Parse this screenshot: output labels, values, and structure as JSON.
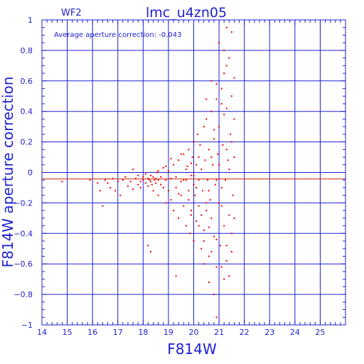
{
  "chart_data": {
    "type": "scatter",
    "title": "lmc_u4zn05",
    "chip": "WF2",
    "xlabel": "F814W",
    "ylabel": "F814W aperture correction",
    "annotation": "Average aperture correction:  -0.043",
    "xlim": [
      14,
      26
    ],
    "ylim": [
      -1,
      1
    ],
    "xticks": [
      14,
      15,
      16,
      17,
      18,
      19,
      20,
      21,
      22,
      23,
      24,
      25
    ],
    "yticks": [
      -1,
      -0.8,
      -0.6,
      -0.4,
      -0.2,
      0,
      0.2,
      0.4,
      0.6,
      0.8,
      1
    ],
    "xtick_labels": [
      "14",
      "15",
      "16",
      "17",
      "18",
      "19",
      "20",
      "21",
      "22",
      "23",
      "24",
      "25"
    ],
    "ytick_labels": [
      "−1",
      "−0.8",
      "−0.6",
      "−0.4",
      "−0.2",
      "0",
      "0.2",
      "0.4",
      "0.6",
      "0.8",
      "1"
    ],
    "average_line": -0.043,
    "grid": true,
    "colors": {
      "axes": "#2020d0",
      "points": "#ee0000",
      "average_line": "#cc2200",
      "background": "#ffffff"
    },
    "points": [
      [
        14.8,
        -0.06
      ],
      [
        15.9,
        -0.05
      ],
      [
        16.2,
        -0.07
      ],
      [
        16.3,
        -0.12
      ],
      [
        16.4,
        -0.22
      ],
      [
        16.5,
        -0.05
      ],
      [
        16.6,
        -0.07
      ],
      [
        16.7,
        -0.1
      ],
      [
        16.8,
        -0.04
      ],
      [
        16.9,
        -0.12
      ],
      [
        17.0,
        -0.06
      ],
      [
        17.1,
        -0.15
      ],
      [
        17.2,
        -0.05
      ],
      [
        17.3,
        -0.03
      ],
      [
        17.4,
        -0.09
      ],
      [
        17.5,
        -0.06
      ],
      [
        17.6,
        0.02
      ],
      [
        17.6,
        -0.11
      ],
      [
        17.7,
        -0.04
      ],
      [
        17.8,
        -0.08
      ],
      [
        17.8,
        -0.02
      ],
      [
        17.9,
        -0.06
      ],
      [
        17.9,
        -0.1
      ],
      [
        18.0,
        -0.03
      ],
      [
        18.0,
        -0.05
      ],
      [
        18.1,
        -0.07
      ],
      [
        18.1,
        -0.01
      ],
      [
        18.2,
        -0.04
      ],
      [
        18.2,
        -0.09
      ],
      [
        18.25,
        -0.05
      ],
      [
        18.3,
        -0.02
      ],
      [
        18.3,
        -0.06
      ],
      [
        18.35,
        -0.08
      ],
      [
        18.4,
        -0.03
      ],
      [
        18.4,
        -0.12
      ],
      [
        18.45,
        -0.05
      ],
      [
        18.5,
        -0.04
      ],
      [
        18.5,
        -0.07
      ],
      [
        18.55,
        0.0
      ],
      [
        18.6,
        -0.05
      ],
      [
        18.6,
        -0.15
      ],
      [
        18.7,
        -0.03
      ],
      [
        18.7,
        -0.08
      ],
      [
        18.8,
        0.03
      ],
      [
        18.8,
        -0.1
      ],
      [
        18.9,
        -0.05
      ],
      [
        18.9,
        -0.2
      ],
      [
        19.0,
        0.01
      ],
      [
        19.0,
        -0.12
      ],
      [
        19.1,
        -0.04
      ],
      [
        19.1,
        -0.18
      ],
      [
        19.2,
        0.05
      ],
      [
        19.2,
        -0.25
      ],
      [
        19.3,
        -0.03
      ],
      [
        19.3,
        -0.1
      ],
      [
        19.4,
        0.08
      ],
      [
        19.4,
        -0.3
      ],
      [
        19.5,
        -0.06
      ],
      [
        19.5,
        -0.15
      ],
      [
        19.6,
        0.12
      ],
      [
        19.6,
        -0.22
      ],
      [
        19.7,
        -0.05
      ],
      [
        19.7,
        -0.35
      ],
      [
        19.75,
        0.04
      ],
      [
        19.8,
        -0.12
      ],
      [
        19.8,
        0.15
      ],
      [
        19.85,
        -0.4
      ],
      [
        19.9,
        -0.02
      ],
      [
        19.9,
        -0.28
      ],
      [
        19.95,
        0.1
      ],
      [
        20.0,
        -0.08
      ],
      [
        20.0,
        0.2
      ],
      [
        20.0,
        -0.45
      ],
      [
        20.05,
        -0.15
      ],
      [
        20.1,
        0.05
      ],
      [
        20.1,
        -0.32
      ],
      [
        20.15,
        0.25
      ],
      [
        20.2,
        -0.05
      ],
      [
        20.2,
        -0.22
      ],
      [
        20.25,
        0.18
      ],
      [
        20.3,
        -0.5
      ],
      [
        20.3,
        0.02
      ],
      [
        20.35,
        -0.12
      ],
      [
        20.4,
        0.3
      ],
      [
        20.4,
        -0.38
      ],
      [
        20.45,
        0.08
      ],
      [
        20.5,
        -0.25
      ],
      [
        20.5,
        0.35
      ],
      [
        20.55,
        -0.05
      ],
      [
        20.6,
        0.15
      ],
      [
        20.6,
        -0.55
      ],
      [
        20.65,
        -0.18
      ],
      [
        20.7,
        0.4
      ],
      [
        20.7,
        -0.3
      ],
      [
        20.75,
        0.05
      ],
      [
        20.8,
        -0.42
      ],
      [
        20.8,
        0.22
      ],
      [
        20.85,
        -0.08
      ],
      [
        20.9,
        0.48
      ],
      [
        20.9,
        -0.62
      ],
      [
        20.95,
        0.12
      ],
      [
        21.0,
        -0.2
      ],
      [
        21.0,
        0.3
      ],
      [
        21.05,
        -0.48
      ],
      [
        21.1,
        0.55
      ],
      [
        21.1,
        -0.1
      ],
      [
        21.15,
        0.18
      ],
      [
        21.2,
        -0.35
      ],
      [
        21.2,
        0.65
      ],
      [
        21.25,
        -0.05
      ],
      [
        21.3,
        0.42
      ],
      [
        21.3,
        -0.58
      ],
      [
        21.35,
        0.08
      ],
      [
        21.4,
        0.75
      ],
      [
        21.4,
        -0.28
      ],
      [
        21.45,
        0.25
      ],
      [
        21.5,
        -0.4
      ],
      [
        21.5,
        0.5
      ],
      [
        21.55,
        -0.15
      ],
      [
        21.6,
        0.35
      ],
      [
        21.3,
        0.95
      ],
      [
        21.5,
        0.92
      ],
      [
        21.6,
        0.62
      ],
      [
        21.6,
        -0.3
      ],
      [
        21.2,
        -0.7
      ],
      [
        21.4,
        -0.68
      ],
      [
        20.8,
        -0.8
      ],
      [
        20.6,
        -0.72
      ],
      [
        20.9,
        -0.95
      ],
      [
        19.3,
        -0.68
      ],
      [
        18.2,
        -0.48
      ],
      [
        18.3,
        -0.52
      ],
      [
        20.4,
        -0.6
      ],
      [
        20.7,
        0.6
      ],
      [
        21.0,
        0.85
      ],
      [
        20.5,
        0.48
      ],
      [
        21.1,
        -0.22
      ],
      [
        20.2,
        0.1
      ],
      [
        20.3,
        -0.28
      ],
      [
        19.8,
        -0.18
      ],
      [
        19.6,
        -0.05
      ],
      [
        19.4,
        -0.14
      ],
      [
        20.0,
        -0.02
      ],
      [
        20.1,
        -0.1
      ],
      [
        20.9,
        -0.05
      ],
      [
        21.0,
        0.05
      ],
      [
        21.3,
        0.15
      ],
      [
        21.4,
        0.02
      ],
      [
        20.6,
        -0.12
      ],
      [
        20.7,
        0.1
      ],
      [
        19.9,
        0.06
      ],
      [
        19.7,
        0.02
      ],
      [
        18.6,
        0.01
      ],
      [
        18.9,
        0.04
      ],
      [
        19.1,
        0.09
      ],
      [
        19.5,
        0.12
      ],
      [
        20.8,
        0.28
      ],
      [
        21.2,
        0.38
      ],
      [
        21.5,
        0.2
      ],
      [
        21.6,
        0.1
      ],
      [
        21.1,
        0.45
      ],
      [
        20.9,
        0.58
      ],
      [
        21.3,
        0.7
      ],
      [
        21.2,
        0.8
      ],
      [
        20.4,
        -0.45
      ],
      [
        20.6,
        -0.36
      ],
      [
        20.9,
        -0.44
      ],
      [
        21.3,
        -0.48
      ],
      [
        21.5,
        -0.52
      ],
      [
        21.1,
        -0.62
      ],
      [
        20.7,
        -0.52
      ],
      [
        20.5,
        -0.2
      ],
      [
        20.2,
        -0.35
      ],
      [
        19.9,
        -0.25
      ]
    ]
  }
}
